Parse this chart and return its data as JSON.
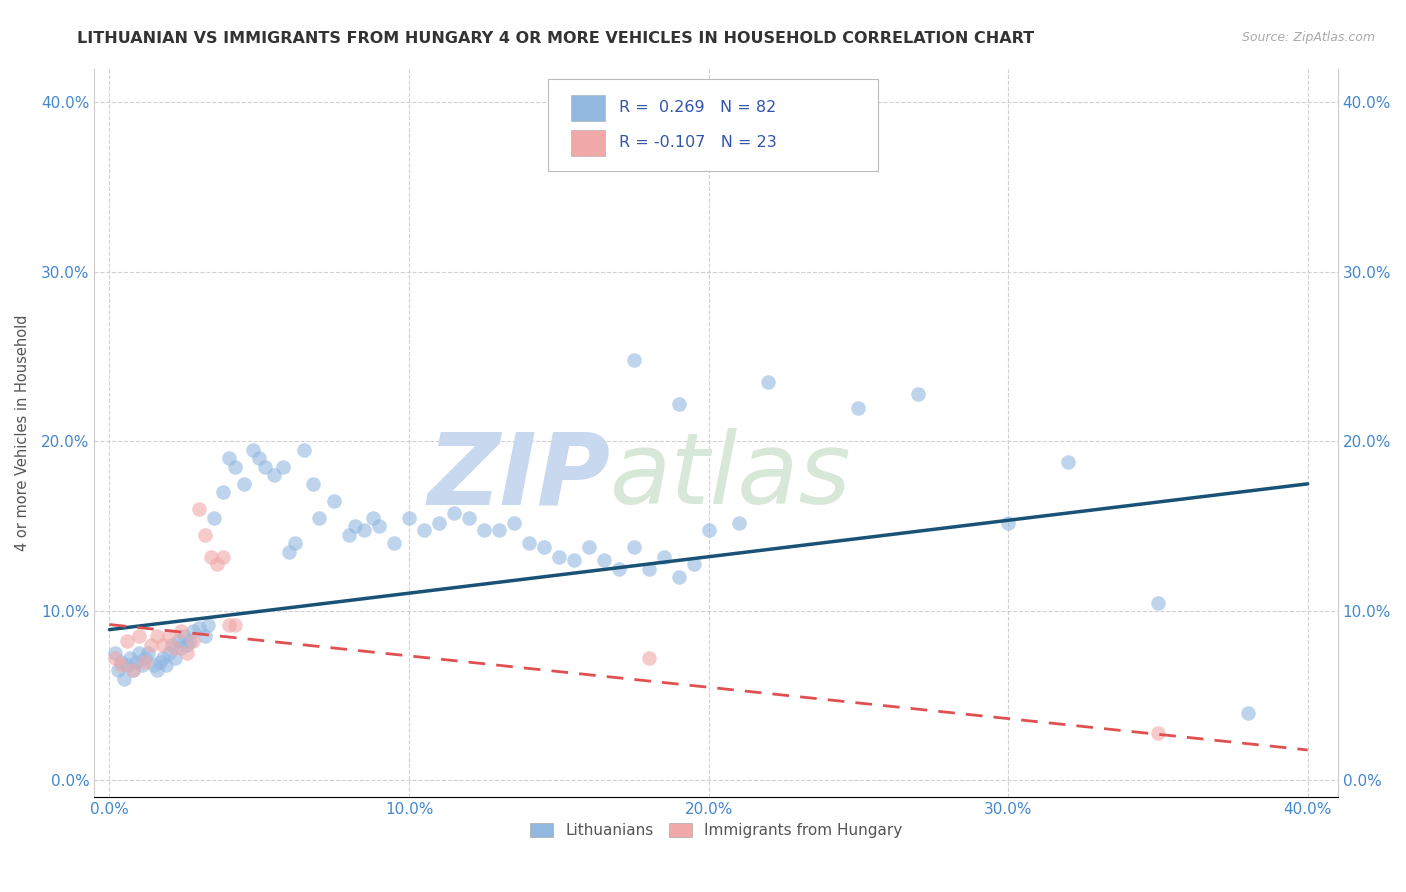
{
  "title": "LITHUANIAN VS IMMIGRANTS FROM HUNGARY 4 OR MORE VEHICLES IN HOUSEHOLD CORRELATION CHART",
  "source": "Source: ZipAtlas.com",
  "ylabel": "4 or more Vehicles in Household",
  "x_tick_values": [
    0.0,
    0.1,
    0.2,
    0.3,
    0.4
  ],
  "y_tick_values": [
    0.0,
    0.1,
    0.2,
    0.3,
    0.4
  ],
  "xlim": [
    -0.005,
    0.41
  ],
  "ylim": [
    -0.01,
    0.42
  ],
  "legend_label1": "Lithuanians",
  "legend_label2": "Immigrants from Hungary",
  "R1": 0.269,
  "N1": 82,
  "R2": -0.107,
  "N2": 23,
  "blue_color": "#92b8e0",
  "pink_color": "#f0a8a8",
  "line_blue": "#1a5276",
  "line_pink": "#e05050",
  "watermark_zip": "ZIP",
  "watermark_atlas": "atlas",
  "blue_x": [
    0.002,
    0.003,
    0.004,
    0.005,
    0.006,
    0.007,
    0.008,
    0.009,
    0.01,
    0.011,
    0.012,
    0.013,
    0.015,
    0.016,
    0.017,
    0.018,
    0.019,
    0.02,
    0.021,
    0.022,
    0.023,
    0.024,
    0.025,
    0.026,
    0.027,
    0.028,
    0.03,
    0.032,
    0.033,
    0.035,
    0.038,
    0.04,
    0.042,
    0.045,
    0.048,
    0.05,
    0.052,
    0.055,
    0.058,
    0.06,
    0.062,
    0.065,
    0.068,
    0.07,
    0.075,
    0.08,
    0.082,
    0.085,
    0.088,
    0.09,
    0.095,
    0.1,
    0.105,
    0.11,
    0.115,
    0.12,
    0.125,
    0.13,
    0.135,
    0.14,
    0.145,
    0.15,
    0.155,
    0.16,
    0.165,
    0.17,
    0.175,
    0.18,
    0.185,
    0.19,
    0.195,
    0.2,
    0.21,
    0.22,
    0.25,
    0.27,
    0.3,
    0.32,
    0.35,
    0.38,
    0.175,
    0.19
  ],
  "blue_y": [
    0.075,
    0.065,
    0.07,
    0.06,
    0.068,
    0.072,
    0.065,
    0.07,
    0.075,
    0.068,
    0.072,
    0.075,
    0.068,
    0.065,
    0.07,
    0.072,
    0.068,
    0.075,
    0.08,
    0.072,
    0.082,
    0.078,
    0.085,
    0.08,
    0.082,
    0.088,
    0.09,
    0.085,
    0.092,
    0.155,
    0.17,
    0.19,
    0.185,
    0.175,
    0.195,
    0.19,
    0.185,
    0.18,
    0.185,
    0.135,
    0.14,
    0.195,
    0.175,
    0.155,
    0.165,
    0.145,
    0.15,
    0.148,
    0.155,
    0.15,
    0.14,
    0.155,
    0.148,
    0.152,
    0.158,
    0.155,
    0.148,
    0.148,
    0.152,
    0.14,
    0.138,
    0.132,
    0.13,
    0.138,
    0.13,
    0.125,
    0.138,
    0.125,
    0.132,
    0.12,
    0.128,
    0.148,
    0.152,
    0.235,
    0.22,
    0.228,
    0.152,
    0.188,
    0.105,
    0.04,
    0.248,
    0.222
  ],
  "pink_x": [
    0.002,
    0.004,
    0.006,
    0.008,
    0.01,
    0.012,
    0.014,
    0.016,
    0.018,
    0.02,
    0.022,
    0.024,
    0.026,
    0.028,
    0.03,
    0.032,
    0.034,
    0.036,
    0.038,
    0.04,
    0.042,
    0.18,
    0.35
  ],
  "pink_y": [
    0.072,
    0.068,
    0.082,
    0.065,
    0.085,
    0.07,
    0.08,
    0.085,
    0.08,
    0.085,
    0.078,
    0.088,
    0.075,
    0.082,
    0.16,
    0.145,
    0.132,
    0.128,
    0.132,
    0.092,
    0.092,
    0.072,
    0.028
  ],
  "blue_line_x": [
    0.0,
    0.4
  ],
  "blue_line_y": [
    0.089,
    0.175
  ],
  "pink_line_x": [
    0.0,
    0.4
  ],
  "pink_line_y": [
    0.092,
    0.018
  ]
}
